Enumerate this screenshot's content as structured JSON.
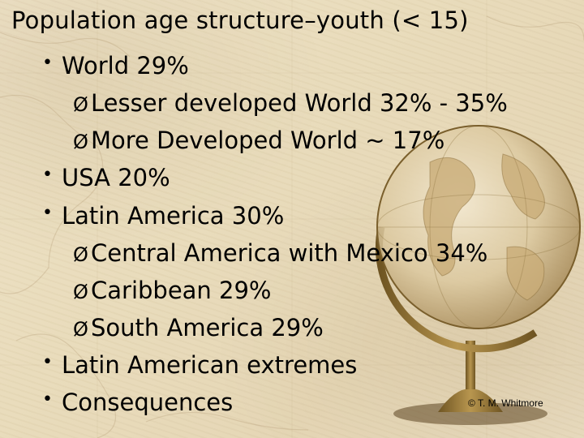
{
  "slide": {
    "title": "Population age structure–youth (< 15)",
    "bullet_marker": "•",
    "sub_marker": "Ø",
    "items": [
      {
        "level": 1,
        "text": "World 29%"
      },
      {
        "level": 2,
        "text": "Lesser developed World 32% - 35%"
      },
      {
        "level": 2,
        "text": "More Developed World ~ 17%"
      },
      {
        "level": 1,
        "text": "USA 20%"
      },
      {
        "level": 1,
        "text": "Latin America 30%"
      },
      {
        "level": 2,
        "text": "Central America with Mexico 34%"
      },
      {
        "level": 2,
        "text": "Caribbean 29%"
      },
      {
        "level": 2,
        "text": "South America 29%"
      },
      {
        "level": 1,
        "text": "Latin American extremes"
      },
      {
        "level": 1,
        "text": "Consequences"
      }
    ],
    "copyright": "© T. M. Whitmore"
  },
  "colors": {
    "background": "#e9dcbc",
    "text": "#000000"
  },
  "icons": {
    "background_art": "antique-map-icon",
    "globe": "globe-icon"
  }
}
